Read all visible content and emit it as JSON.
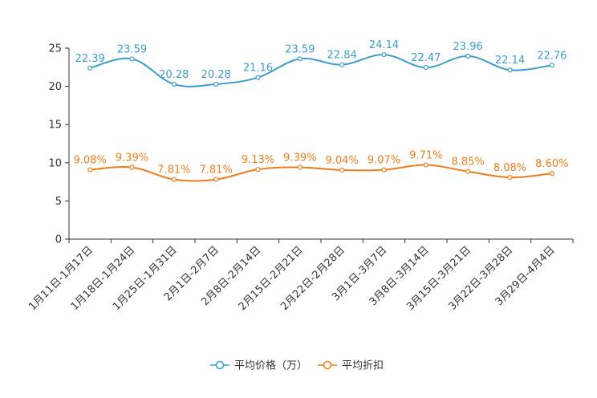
{
  "chart_data": {
    "type": "line",
    "title": "",
    "xlabel": "",
    "ylabel": "",
    "ylim": [
      0,
      25
    ],
    "y_ticks": [
      0,
      5,
      10,
      15,
      20,
      25
    ],
    "grid": false,
    "smooth": true,
    "legend_position": "bottom-center",
    "categories": [
      "1月11日-1月17日",
      "1月18日-1月24日",
      "1月25日-1月31日",
      "2月1日-2月7日",
      "2月8日-2月14日",
      "2月15日-2月21日",
      "2月22日-2月28日",
      "3月1日-3月7日",
      "3月8日-3月14日",
      "3月15日-3月21日",
      "3月22日-3月28日",
      "3月29日-4月4日"
    ],
    "series": [
      {
        "name": "平均价格（万）",
        "color": "#3a9dcb",
        "values": [
          22.39,
          23.59,
          20.28,
          20.28,
          21.16,
          23.59,
          22.84,
          24.14,
          22.47,
          23.96,
          22.14,
          22.76
        ],
        "labels": [
          "22.39",
          "23.59",
          "20.28",
          "20.28",
          "21.16",
          "23.59",
          "22.84",
          "24.14",
          "22.47",
          "23.96",
          "22.14",
          "22.76"
        ]
      },
      {
        "name": "平均折扣",
        "color": "#f07d1a",
        "values": [
          9.08,
          9.39,
          7.81,
          7.81,
          9.13,
          9.39,
          9.04,
          9.07,
          9.71,
          8.85,
          8.08,
          8.6
        ],
        "labels": [
          "9.08%",
          "9.39%",
          "7.81%",
          "7.81%",
          "9.13%",
          "9.39%",
          "9.04%",
          "9.07%",
          "9.71%",
          "8.85%",
          "8.08%",
          "8.60%"
        ]
      }
    ]
  }
}
